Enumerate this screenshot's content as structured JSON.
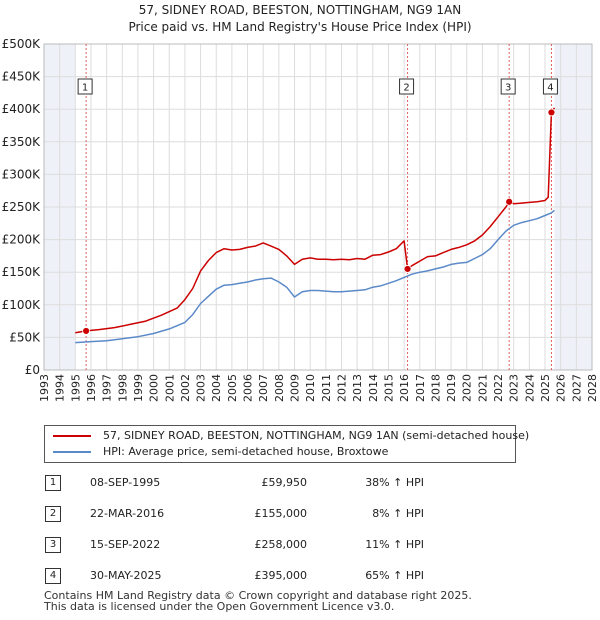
{
  "chart_data": {
    "type": "line",
    "title": "57, SIDNEY ROAD, BEESTON, NOTTINGHAM, NG9 1AN",
    "subtitle": "Price paid vs. HM Land Registry's House Price Index (HPI)",
    "xlabel": "",
    "ylabel": "",
    "xlim": [
      1993,
      2028
    ],
    "ylim": [
      0,
      500000
    ],
    "x_ticks": [
      1993,
      1994,
      1995,
      1996,
      1997,
      1998,
      1999,
      2000,
      2001,
      2002,
      2003,
      2004,
      2005,
      2006,
      2007,
      2008,
      2009,
      2010,
      2011,
      2012,
      2013,
      2014,
      2015,
      2016,
      2017,
      2018,
      2019,
      2020,
      2021,
      2022,
      2023,
      2024,
      2025,
      2026,
      2027,
      2028
    ],
    "y_ticks": [
      {
        "value": 0,
        "label": "£0"
      },
      {
        "value": 50000,
        "label": "£50K"
      },
      {
        "value": 100000,
        "label": "£100K"
      },
      {
        "value": 150000,
        "label": "£150K"
      },
      {
        "value": 200000,
        "label": "£200K"
      },
      {
        "value": 250000,
        "label": "£250K"
      },
      {
        "value": 300000,
        "label": "£300K"
      },
      {
        "value": 350000,
        "label": "£350K"
      },
      {
        "value": 400000,
        "label": "£400K"
      },
      {
        "value": 450000,
        "label": "£450K"
      },
      {
        "value": 500000,
        "label": "£500K"
      }
    ],
    "series": [
      {
        "name": "57, SIDNEY ROAD, BEESTON, NOTTINGHAM, NG9 1AN (semi-detached house)",
        "color": "#cc0000",
        "x": [
          1995.0,
          1995.69,
          1996.5,
          1997.5,
          1998.5,
          1999.5,
          2000.5,
          2001.5,
          2002.0,
          2002.5,
          2003.0,
          2003.5,
          2004.0,
          2004.5,
          2005.0,
          2005.5,
          2006.0,
          2006.5,
          2007.0,
          2007.5,
          2008.0,
          2008.5,
          2009.0,
          2009.5,
          2010.0,
          2010.5,
          2011.0,
          2011.5,
          2012.0,
          2012.5,
          2013.0,
          2013.5,
          2014.0,
          2014.5,
          2015.0,
          2015.5,
          2016.0,
          2016.22,
          2016.5,
          2017.0,
          2017.5,
          2018.0,
          2018.5,
          2019.0,
          2019.5,
          2020.0,
          2020.5,
          2021.0,
          2021.5,
          2022.0,
          2022.5,
          2022.71,
          2023.0,
          2023.5,
          2024.0,
          2024.5,
          2025.0,
          2025.2,
          2025.41,
          2025.6
        ],
        "values": [
          57000,
          59950,
          62000,
          65000,
          70000,
          75000,
          84000,
          95000,
          108000,
          125000,
          152000,
          168000,
          180000,
          186000,
          184000,
          185000,
          188000,
          190000,
          195000,
          190000,
          185000,
          175000,
          162000,
          170000,
          172000,
          170000,
          170000,
          169000,
          170000,
          169000,
          171000,
          170000,
          176000,
          177000,
          181000,
          186000,
          198000,
          155000,
          160000,
          167000,
          174000,
          175000,
          180000,
          185000,
          188000,
          192000,
          198000,
          207000,
          220000,
          235000,
          250000,
          258000,
          255000,
          256000,
          257000,
          258000,
          260000,
          265000,
          395000,
          402000
        ]
      },
      {
        "name": "HPI: Average price, semi-detached house, Broxtowe",
        "color": "#5b8ac9",
        "x": [
          1995.0,
          1996.0,
          1997.0,
          1998.0,
          1999.0,
          2000.0,
          2001.0,
          2002.0,
          2002.5,
          2003.0,
          2003.5,
          2004.0,
          2004.5,
          2005.0,
          2005.5,
          2006.0,
          2006.5,
          2007.0,
          2007.5,
          2008.0,
          2008.5,
          2009.0,
          2009.5,
          2010.0,
          2010.5,
          2011.0,
          2011.5,
          2012.0,
          2012.5,
          2013.0,
          2013.5,
          2014.0,
          2014.5,
          2015.0,
          2015.5,
          2016.0,
          2016.5,
          2017.0,
          2017.5,
          2018.0,
          2018.5,
          2019.0,
          2019.5,
          2020.0,
          2020.5,
          2021.0,
          2021.5,
          2022.0,
          2022.5,
          2023.0,
          2023.5,
          2024.0,
          2024.5,
          2025.0,
          2025.4,
          2025.6
        ],
        "values": [
          42000,
          43500,
          45000,
          48000,
          51000,
          56000,
          63000,
          73000,
          85000,
          102000,
          113000,
          124000,
          130000,
          131000,
          133000,
          135000,
          138000,
          140000,
          141000,
          135000,
          127000,
          112000,
          120000,
          122000,
          122000,
          121000,
          120000,
          120000,
          121000,
          122000,
          123000,
          127000,
          129000,
          133000,
          137000,
          142000,
          147000,
          150000,
          152000,
          155000,
          158000,
          162000,
          164000,
          165000,
          171000,
          177000,
          186000,
          200000,
          213000,
          222000,
          226000,
          229000,
          232000,
          237000,
          241000,
          245000
        ]
      }
    ],
    "sales": [
      {
        "id": "1",
        "x": 1995.69,
        "value": 59950
      },
      {
        "id": "2",
        "x": 2016.22,
        "value": 155000
      },
      {
        "id": "3",
        "x": 2022.71,
        "value": 258000
      },
      {
        "id": "4",
        "x": 2025.41,
        "value": 395000
      }
    ],
    "shading": [
      [
        1993,
        1995.0
      ],
      [
        2025.6,
        2028
      ]
    ]
  },
  "legend": {
    "property": "57, SIDNEY ROAD, BEESTON, NOTTINGHAM, NG9 1AN (semi-detached house)",
    "hpi": "HPI: Average price, semi-detached house, Broxtowe"
  },
  "transactions": [
    {
      "num": "1",
      "date": "08-SEP-1995",
      "price": "£59,950",
      "hpi": "38% ↑ HPI"
    },
    {
      "num": "2",
      "date": "22-MAR-2016",
      "price": "£155,000",
      "hpi": "8% ↑ HPI"
    },
    {
      "num": "3",
      "date": "15-SEP-2022",
      "price": "£258,000",
      "hpi": "11% ↑ HPI"
    },
    {
      "num": "4",
      "date": "30-MAY-2025",
      "price": "£395,000",
      "hpi": "65% ↑ HPI"
    }
  ],
  "footer": {
    "line1": "Contains HM Land Registry data © Crown copyright and database right 2025.",
    "line2": "This data is licensed under the Open Government Licence v3.0."
  },
  "colors": {
    "property": "#cc0000",
    "hpi": "#5b8ac9",
    "grid": "#dddddd",
    "shade": "#eef1f8",
    "vline": "#e06060"
  }
}
